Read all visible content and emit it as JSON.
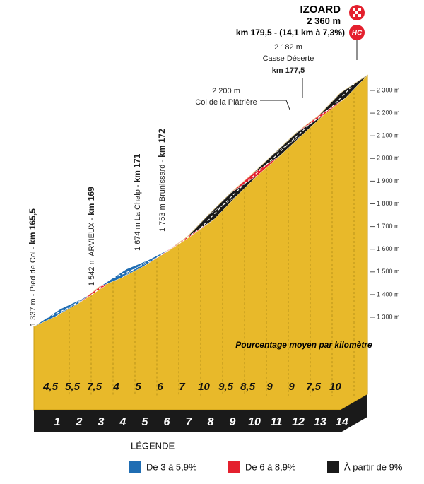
{
  "chart_data": {
    "type": "profile",
    "title": "IZOARD",
    "summit_altitude": "2 360 m",
    "summit_info": "km 179,5 - (14,1 km à 7,3%)",
    "badge": "HC",
    "subtitle": "Pourcentage moyen par kilomètre",
    "start_altitude": 1337,
    "categories": [
      "1",
      "2",
      "3",
      "4",
      "5",
      "6",
      "7",
      "8",
      "9",
      "10",
      "11",
      "12",
      "13",
      "14"
    ],
    "values": [
      4.5,
      5.5,
      7.5,
      4,
      5,
      6,
      7,
      10,
      9.5,
      8.5,
      9,
      9,
      7.5,
      10
    ],
    "value_labels": [
      "4,5",
      "5,5",
      "7,5",
      "4",
      "5",
      "6",
      "7",
      "10",
      "9,5",
      "8,5",
      "9",
      "9",
      "7,5",
      "10"
    ],
    "colors": [
      "#1f6db3",
      "#1f6db3",
      "#e4202e",
      "#1f6db3",
      "#1f6db3",
      "#e4202e",
      "#e4202e",
      "#1a1a1a",
      "#1a1a1a",
      "#e4202e",
      "#1a1a1a",
      "#1a1a1a",
      "#e4202e",
      "#1a1a1a"
    ],
    "ylim": [
      1300,
      2300
    ],
    "yticks": [
      {
        "value": 1300,
        "label": "1 300 m"
      },
      {
        "value": 1400,
        "label": "1 400 m"
      },
      {
        "value": 1500,
        "label": "1 500 m"
      },
      {
        "value": 1600,
        "label": "1 600 m"
      },
      {
        "value": 1700,
        "label": "1 700 m"
      },
      {
        "value": 1800,
        "label": "1 800 m"
      },
      {
        "value": 1900,
        "label": "1 900 m"
      },
      {
        "value": 2000,
        "label": "2 000 m"
      },
      {
        "value": 2100,
        "label": "2 100 m"
      },
      {
        "value": 2200,
        "label": "2 200 m"
      },
      {
        "value": 2300,
        "label": "2 300 m"
      }
    ],
    "annotations": [
      {
        "text": "1 337 m - Pied de Col -",
        "km": "km 165,5"
      },
      {
        "text": "1 542 m ARVIEUX -",
        "km": "km 169"
      },
      {
        "text": "1 674 m La Chalp -",
        "km": "km 171"
      },
      {
        "text": "1 753 m Brunissard -",
        "km": "km 172"
      },
      {
        "text": "2 200 m",
        "place": "Col de la Plâtrière"
      },
      {
        "text": "2 182 m",
        "place": "Casse Déserte",
        "km": "km 177,5"
      }
    ],
    "legend": {
      "title": "LÉGENDE",
      "items": [
        {
          "label": "De 3 à 5,9%",
          "color": "#1f6db3"
        },
        {
          "label": "De 6 à 8,9%",
          "color": "#e4202e"
        },
        {
          "label": "À partir de 9%",
          "color": "#1a1a1a"
        }
      ]
    }
  }
}
